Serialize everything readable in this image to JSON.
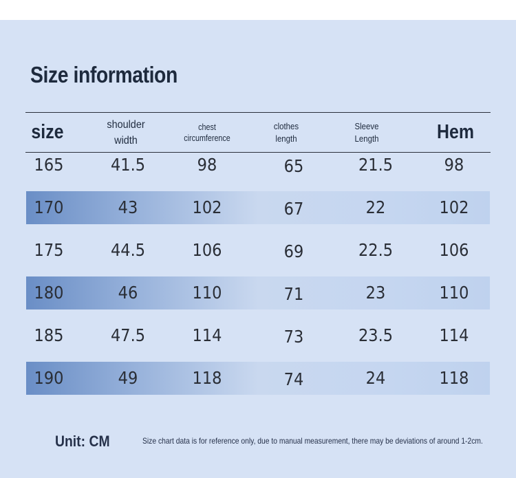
{
  "title": "Size information",
  "columns": [
    {
      "key": "size",
      "label": "size",
      "style": "big"
    },
    {
      "key": "shoulder",
      "label": "shoulder\nwidth",
      "style": "mid"
    },
    {
      "key": "chest",
      "label": "chest\ncircumference",
      "style": "small"
    },
    {
      "key": "clothes",
      "label": "clothes\nlength",
      "style": "smallish"
    },
    {
      "key": "sleeve",
      "label": "Sleeve\nLength",
      "style": "smallish"
    },
    {
      "key": "hem",
      "label": "Hem",
      "style": "big"
    }
  ],
  "rows": [
    {
      "size": "165",
      "shoulder": "41.5",
      "chest": "98",
      "clothes": "65",
      "sleeve": "21.5",
      "hem": "98"
    },
    {
      "size": "170",
      "shoulder": "43",
      "chest": "102",
      "clothes": "67",
      "sleeve": "22",
      "hem": "102"
    },
    {
      "size": "175",
      "shoulder": "44.5",
      "chest": "106",
      "clothes": "69",
      "sleeve": "22.5",
      "hem": "106"
    },
    {
      "size": "180",
      "shoulder": "46",
      "chest": "110",
      "clothes": "71",
      "sleeve": "23",
      "hem": "110"
    },
    {
      "size": "185",
      "shoulder": "47.5",
      "chest": "114",
      "clothes": "73",
      "sleeve": "23.5",
      "hem": "114"
    },
    {
      "size": "190",
      "shoulder": "49",
      "chest": "118",
      "clothes": "74",
      "sleeve": "24",
      "hem": "118"
    }
  ],
  "unit": "Unit: CM",
  "note": "Size chart data is for reference only, due to manual measurement, there may be deviations of around 1-2cm.",
  "colors": {
    "background": "#d6e2f5",
    "row_shade_start": "#6a8ec6",
    "text": "#1e2a3d"
  }
}
